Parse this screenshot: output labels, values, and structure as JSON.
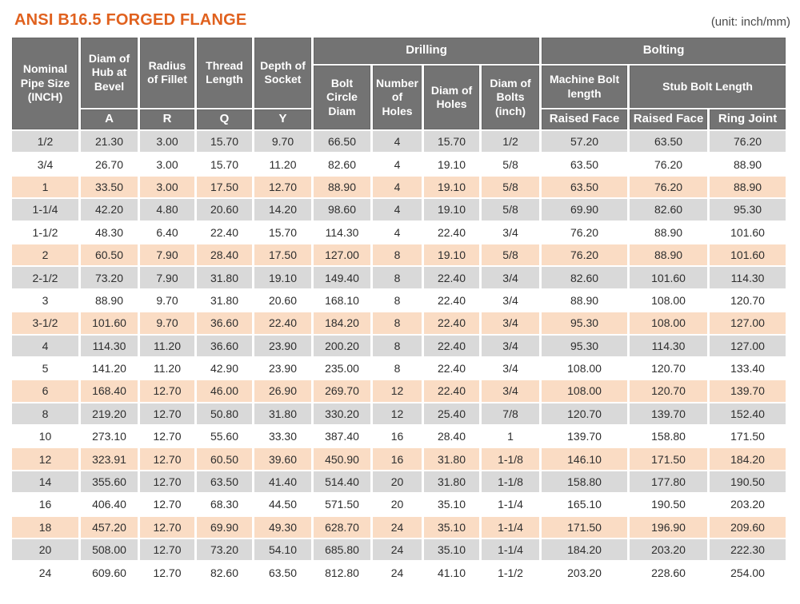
{
  "page": {
    "title": "ANSI B16.5 FORGED FLANGE",
    "unit_note": "(unit: inch/mm)"
  },
  "colors": {
    "accent": "#e0611e",
    "header_bg": "#737373",
    "row_gray": "#d9d9d9",
    "row_peach": "#fadcc4",
    "row_white": "#ffffff",
    "body_text": "#2e2e2e",
    "header_text": "#ffffff",
    "note_text": "#4a4a4a"
  },
  "table": {
    "group_headers": {
      "drilling": "Drilling",
      "bolting": "Bolting"
    },
    "columns": {
      "nominal": "Nominal Pipe Size (INCH)",
      "hub_diam": "Diam of Hub at Bevel",
      "fillet_radius": "Radius of Fillet",
      "thread_length": "Thread Length",
      "socket_depth": "Depth of Socket",
      "bolt_circle": "Bolt Circle Diam",
      "num_holes": "Number of Holes",
      "hole_diam": "Diam of Holes",
      "bolt_diam": "Diam of Bolts (inch)",
      "machine_bolt": "Machine Bolt length",
      "stub_bolt": "Stub Bolt Length",
      "sub_a": "A",
      "sub_r": "R",
      "sub_q": "Q",
      "sub_y": "Y",
      "raised_face_machine": "Raised Face",
      "raised_face_stub": "Raised Face",
      "ring_joint": "Ring Joint"
    },
    "rows": [
      [
        "1/2",
        "21.30",
        "3.00",
        "15.70",
        "9.70",
        "66.50",
        "4",
        "15.70",
        "1/2",
        "57.20",
        "63.50",
        "76.20"
      ],
      [
        "3/4",
        "26.70",
        "3.00",
        "15.70",
        "11.20",
        "82.60",
        "4",
        "19.10",
        "5/8",
        "63.50",
        "76.20",
        "88.90"
      ],
      [
        "1",
        "33.50",
        "3.00",
        "17.50",
        "12.70",
        "88.90",
        "4",
        "19.10",
        "5/8",
        "63.50",
        "76.20",
        "88.90"
      ],
      [
        "1-1/4",
        "42.20",
        "4.80",
        "20.60",
        "14.20",
        "98.60",
        "4",
        "19.10",
        "5/8",
        "69.90",
        "82.60",
        "95.30"
      ],
      [
        "1-1/2",
        "48.30",
        "6.40",
        "22.40",
        "15.70",
        "114.30",
        "4",
        "22.40",
        "3/4",
        "76.20",
        "88.90",
        "101.60"
      ],
      [
        "2",
        "60.50",
        "7.90",
        "28.40",
        "17.50",
        "127.00",
        "8",
        "19.10",
        "5/8",
        "76.20",
        "88.90",
        "101.60"
      ],
      [
        "2-1/2",
        "73.20",
        "7.90",
        "31.80",
        "19.10",
        "149.40",
        "8",
        "22.40",
        "3/4",
        "82.60",
        "101.60",
        "114.30"
      ],
      [
        "3",
        "88.90",
        "9.70",
        "31.80",
        "20.60",
        "168.10",
        "8",
        "22.40",
        "3/4",
        "88.90",
        "108.00",
        "120.70"
      ],
      [
        "3-1/2",
        "101.60",
        "9.70",
        "36.60",
        "22.40",
        "184.20",
        "8",
        "22.40",
        "3/4",
        "95.30",
        "108.00",
        "127.00"
      ],
      [
        "4",
        "114.30",
        "11.20",
        "36.60",
        "23.90",
        "200.20",
        "8",
        "22.40",
        "3/4",
        "95.30",
        "114.30",
        "127.00"
      ],
      [
        "5",
        "141.20",
        "11.20",
        "42.90",
        "23.90",
        "235.00",
        "8",
        "22.40",
        "3/4",
        "108.00",
        "120.70",
        "133.40"
      ],
      [
        "6",
        "168.40",
        "12.70",
        "46.00",
        "26.90",
        "269.70",
        "12",
        "22.40",
        "3/4",
        "108.00",
        "120.70",
        "139.70"
      ],
      [
        "8",
        "219.20",
        "12.70",
        "50.80",
        "31.80",
        "330.20",
        "12",
        "25.40",
        "7/8",
        "120.70",
        "139.70",
        "152.40"
      ],
      [
        "10",
        "273.10",
        "12.70",
        "55.60",
        "33.30",
        "387.40",
        "16",
        "28.40",
        "1",
        "139.70",
        "158.80",
        "171.50"
      ],
      [
        "12",
        "323.91",
        "12.70",
        "60.50",
        "39.60",
        "450.90",
        "16",
        "31.80",
        "1-1/8",
        "146.10",
        "171.50",
        "184.20"
      ],
      [
        "14",
        "355.60",
        "12.70",
        "63.50",
        "41.40",
        "514.40",
        "20",
        "31.80",
        "1-1/8",
        "158.80",
        "177.80",
        "190.50"
      ],
      [
        "16",
        "406.40",
        "12.70",
        "68.30",
        "44.50",
        "571.50",
        "20",
        "35.10",
        "1-1/4",
        "165.10",
        "190.50",
        "203.20"
      ],
      [
        "18",
        "457.20",
        "12.70",
        "69.90",
        "49.30",
        "628.70",
        "24",
        "35.10",
        "1-1/4",
        "171.50",
        "196.90",
        "209.60"
      ],
      [
        "20",
        "508.00",
        "12.70",
        "73.20",
        "54.10",
        "685.80",
        "24",
        "35.10",
        "1-1/4",
        "184.20",
        "203.20",
        "222.30"
      ],
      [
        "24",
        "609.60",
        "12.70",
        "82.60",
        "63.50",
        "812.80",
        "24",
        "41.10",
        "1-1/2",
        "203.20",
        "228.60",
        "254.00"
      ]
    ],
    "row_shade_cycle": [
      "gray",
      "white",
      "peach"
    ]
  }
}
